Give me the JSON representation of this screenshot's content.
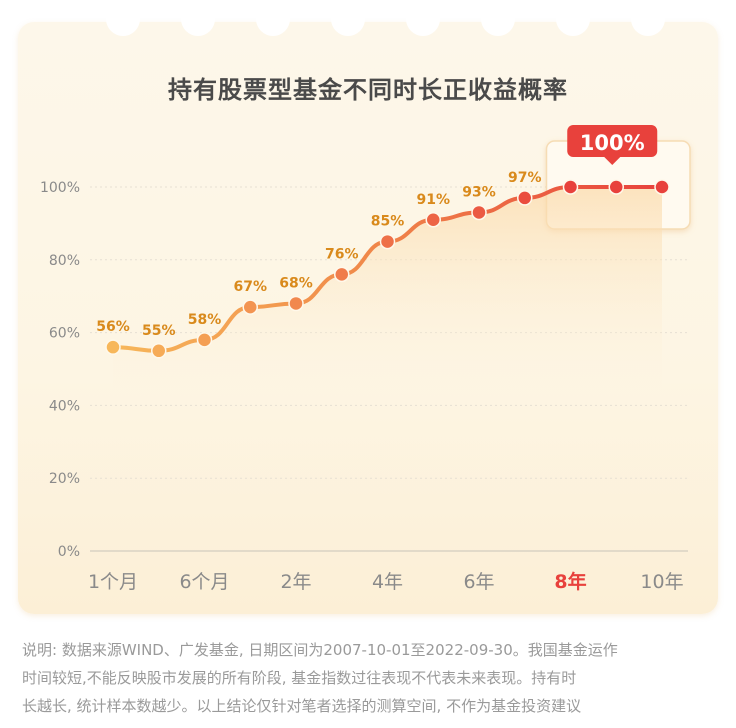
{
  "title": "持有股票型基金不同时长正收益概率",
  "chart_data": {
    "type": "line",
    "title": "持有股票型基金不同时长正收益概率",
    "xlabel": "",
    "ylabel": "",
    "ylim": [
      0,
      100
    ],
    "y_ticks": [
      "0%",
      "20%",
      "40%",
      "60%",
      "80%",
      "100%"
    ],
    "y_tick_values": [
      0,
      20,
      40,
      60,
      80,
      100
    ],
    "x_ticks": [
      "1个月",
      "6个月",
      "2年",
      "4年",
      "6年",
      "8年",
      "10年"
    ],
    "x_tick_positions": [
      0,
      2,
      4,
      6,
      8,
      10,
      12
    ],
    "highlight_tick": "8年",
    "grid": "horizontal",
    "points": [
      {
        "x": 0,
        "value": 56,
        "label": "56%"
      },
      {
        "x": 1,
        "value": 55,
        "label": "55%"
      },
      {
        "x": 2,
        "value": 58,
        "label": "58%"
      },
      {
        "x": 3,
        "value": 67,
        "label": "67%"
      },
      {
        "x": 4,
        "value": 68,
        "label": "68%"
      },
      {
        "x": 5,
        "value": 76,
        "label": "76%"
      },
      {
        "x": 6,
        "value": 85,
        "label": "85%"
      },
      {
        "x": 7,
        "value": 91,
        "label": "91%"
      },
      {
        "x": 8,
        "value": 93,
        "label": "93%"
      },
      {
        "x": 9,
        "value": 97,
        "label": "97%"
      },
      {
        "x": 10,
        "value": 100,
        "label": ""
      },
      {
        "x": 11,
        "value": 100,
        "label": ""
      },
      {
        "x": 12,
        "value": 100,
        "label": ""
      }
    ],
    "callout": "100%",
    "colors": {
      "start": "#f5b35a",
      "end": "#e8413c",
      "label": "#d98a1c",
      "callout": "#e8413c",
      "highlight_tick": "#e8413c"
    }
  },
  "note_lines": [
    "说明: 数据来源WIND、广发基金, 日期区间为2007-10-01至2022-09-30。我国基金运作",
    "时间较短,不能反映股市发展的所有阶段, 基金指数过往表现不代表未来表现。持有时",
    "长越长, 统计样本数越少。以上结论仅针对笔者选择的测算空间, 不作为基金投资建议"
  ]
}
